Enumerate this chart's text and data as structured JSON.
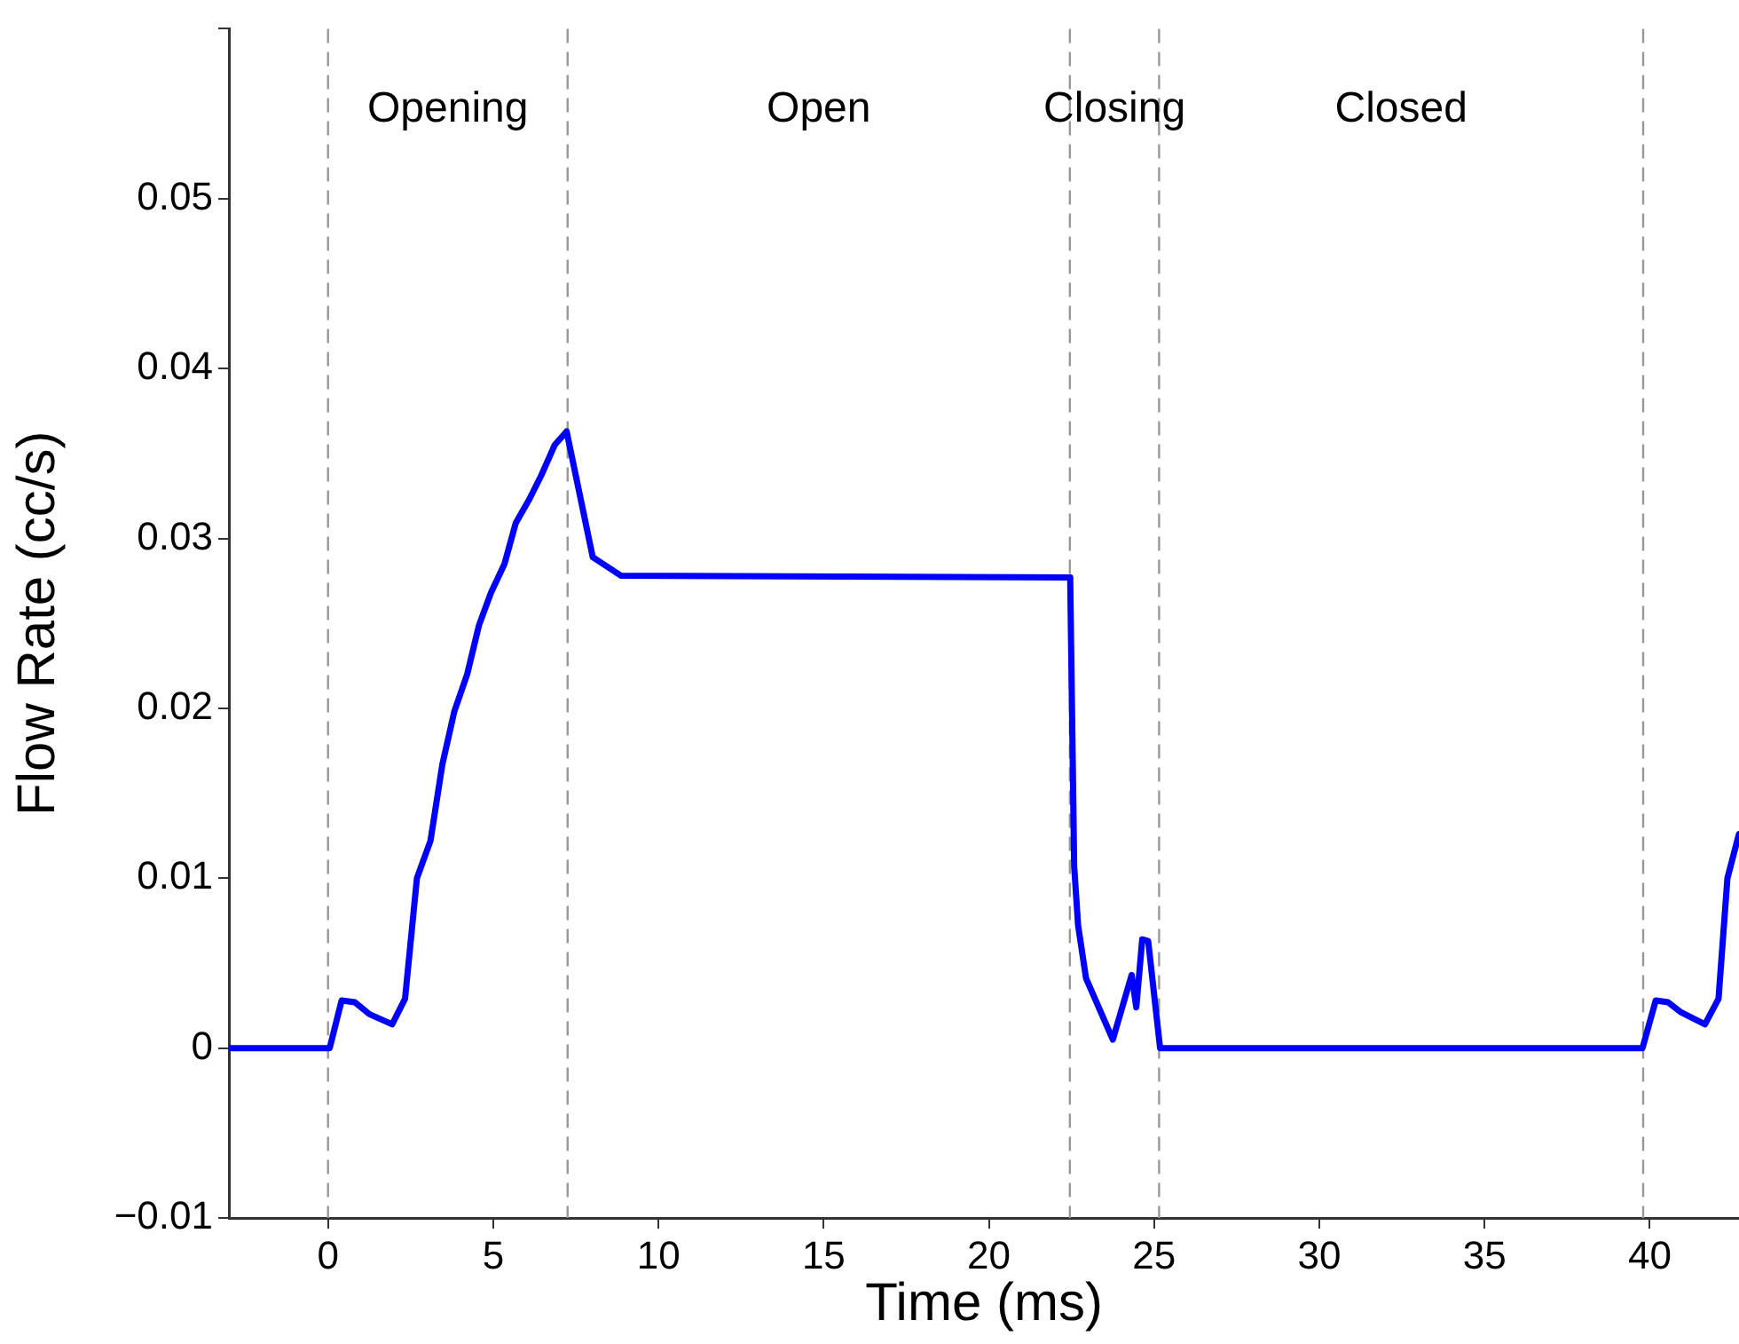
{
  "chart_data": {
    "type": "line",
    "xlabel": "Time (ms)",
    "ylabel": "Flow Rate (cc/s)",
    "xlim": [
      -3,
      42.7
    ],
    "xticks": [
      0,
      5,
      10,
      15,
      20,
      25,
      30,
      35,
      40
    ],
    "ylim": [
      -0.01,
      0.06
    ],
    "yticks": [
      {
        "value": -0.01,
        "label": "−0.01"
      },
      0,
      0.01,
      0.02,
      0.03,
      0.04,
      0.05,
      {
        "value": 0.06,
        "label": null
      }
    ],
    "grid": false,
    "legend": false,
    "marker": "none",
    "line_style": "solid",
    "series": [
      {
        "color": "#0000ff",
        "x": [
          -3,
          0.05,
          0.41,
          0.81,
          1.25,
          1.94,
          2.33,
          2.69,
          3.1,
          3.46,
          3.82,
          4.21,
          4.57,
          4.93,
          5.34,
          5.68,
          6.09,
          6.45,
          6.86,
          7.22,
          8.01,
          8.87,
          22.46,
          22.58,
          22.7,
          22.94,
          23.75,
          24.32,
          24.46,
          24.64,
          24.82,
          25.18,
          39.78,
          40.18,
          40.55,
          40.95,
          41.67,
          42.08,
          42.35,
          42.7
        ],
        "values": [
          0,
          0,
          0.0028,
          0.0027,
          0.002,
          0.0014,
          0.0029,
          0.01,
          0.0122,
          0.0167,
          0.0198,
          0.022,
          0.0249,
          0.0268,
          0.0285,
          0.0309,
          0.0323,
          0.0337,
          0.0355,
          0.0363,
          0.0289,
          0.0278,
          0.0277,
          0.0107,
          0.0072,
          0.0041,
          0.0005,
          0.0043,
          0.0024,
          0.0064,
          0.0063,
          0,
          0,
          0.0028,
          0.0027,
          0.0021,
          0.0014,
          0.0029,
          0.01,
          0.0126
        ]
      }
    ],
    "ref_lines": [
      {
        "axis": "x",
        "value": 0,
        "color": "#999999",
        "line_style": "dashed"
      },
      {
        "axis": "x",
        "value": 7.25,
        "color": "#999999",
        "line_style": "dashed"
      },
      {
        "axis": "x",
        "value": 22.45,
        "color": "#999999",
        "line_style": "dashed"
      },
      {
        "axis": "x",
        "value": 25.15,
        "color": "#999999",
        "line_style": "dashed"
      },
      {
        "axis": "x",
        "value": 39.8,
        "color": "#999999",
        "line_style": "dashed"
      }
    ],
    "annotations": [
      "Opening",
      "Open",
      "Closing",
      "Closed"
    ]
  }
}
